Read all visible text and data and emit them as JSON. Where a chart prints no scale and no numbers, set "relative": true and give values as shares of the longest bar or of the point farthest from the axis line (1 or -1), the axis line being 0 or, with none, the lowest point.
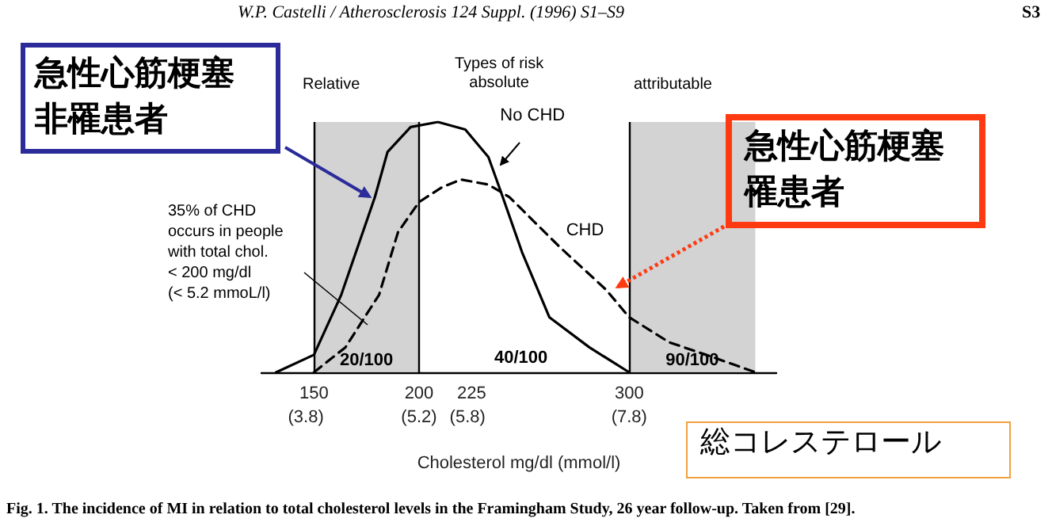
{
  "chart_data": {
    "type": "line",
    "relative": true,
    "xlabel": "Cholesterol mg/dl (mmol/l)",
    "xlim": [
      125,
      370
    ],
    "xticks": [
      150,
      200,
      225,
      300
    ],
    "x2lim": [
      3.25,
      9.62
    ],
    "x2ticks": [
      {
        "value": 3.8,
        "label": "(3.8)"
      },
      {
        "value": 5.2,
        "label": "(5.2)"
      },
      {
        "value": 5.8,
        "label": "(5.8)"
      },
      {
        "value": 7.8,
        "label": "(7.8)"
      }
    ],
    "series": [
      {
        "name": "No CHD",
        "color": "#000000",
        "line_style": "solid",
        "x": [
          132,
          150,
          163,
          179,
          185,
          196,
          209,
          222,
          233,
          239,
          249,
          262,
          281,
          300
        ],
        "values": [
          0,
          0.07,
          0.31,
          0.7,
          0.88,
          0.98,
          1.0,
          0.97,
          0.86,
          0.72,
          0.48,
          0.22,
          0.1,
          0
        ]
      },
      {
        "name": "CHD",
        "color": "#000000",
        "line_style": "dashed",
        "x": [
          150,
          165,
          181,
          190,
          200,
          211,
          220,
          233,
          243,
          267,
          289,
          300,
          319,
          340,
          360
        ],
        "values": [
          0,
          0.1,
          0.31,
          0.56,
          0.68,
          0.74,
          0.77,
          0.75,
          0.7,
          0.5,
          0.33,
          0.22,
          0.12,
          0.06,
          0
        ]
      }
    ],
    "ref_lines": [
      {
        "axis": "x",
        "value": 150
      },
      {
        "axis": "x",
        "value": 200
      },
      {
        "axis": "x",
        "value": 300
      }
    ],
    "bands": [
      {
        "axis": "x",
        "from": 150,
        "to": 200,
        "label": "20/100",
        "color": "#c8c8c8"
      },
      {
        "axis": "x",
        "from": 300,
        "to": 360,
        "label": "90/100",
        "color": "#c8c8c8"
      }
    ],
    "grid": false,
    "legend": false,
    "marker": "none",
    "annotations": [
      "W.P. Castelli / Atherosclerosis 124 Suppl. (1996) S1–S9",
      "S3",
      "Relative",
      "Types of risk\nabsolute",
      "attributable",
      "急性心筋梗塞非罹患者",
      "急性心筋梗塞罹患者",
      "35% of CHD\noccurs in people\nwith total chol.\n< 200 mg/dl\n(< 5.2 mmoL/l)",
      "40/100",
      "総コレステロール",
      "Fig. 1. The incidence of MI in relation to total cholesterol levels in the Framingham Study, 26 year follow-up. Taken from [29]."
    ]
  }
}
